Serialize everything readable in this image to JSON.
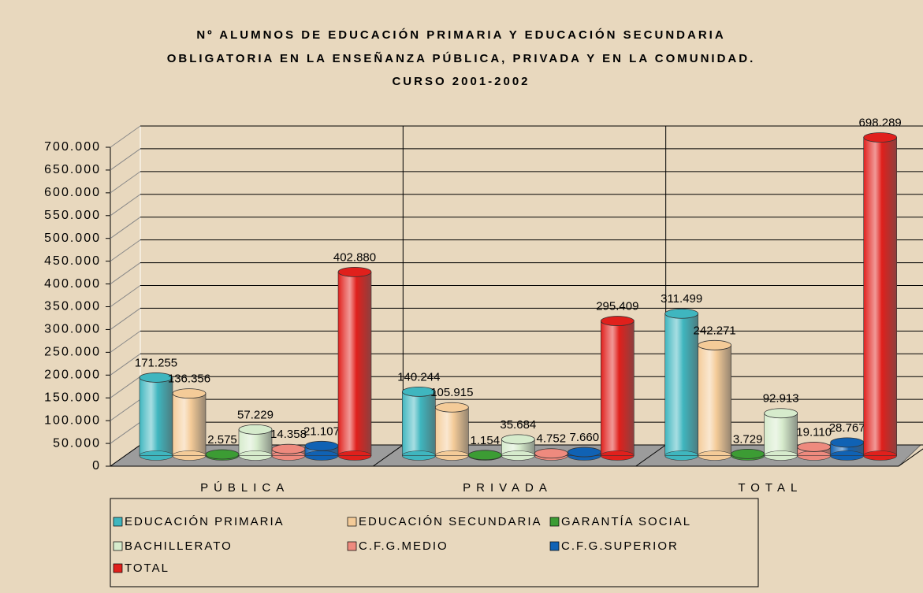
{
  "chart_data": {
    "type": "bar3d",
    "title": [
      "Nº ALUMNOS DE EDUCACIÓN PRIMARIA Y EDUCACIÓN SECUNDARIA",
      "OBLIGATORIA EN LA ENSEÑANZA PÚBLICA, PRIVADA Y EN LA COMUNIDAD.",
      "CURSO 2001-2002"
    ],
    "categories": [
      "PÚBLICA",
      "PRIVADA",
      "TOTAL"
    ],
    "series": [
      {
        "name": "EDUCACIÓN PRIMARIA",
        "color": "#3fb6bf",
        "values": [
          171255,
          140244,
          311499
        ],
        "value_labels": [
          "171.255",
          "140.244",
          "311.499"
        ]
      },
      {
        "name": "EDUCACIÓN SECUNDARIA",
        "color": "#f4cb98",
        "values": [
          136356,
          105915,
          242271
        ],
        "value_labels": [
          "136.356",
          "105.915",
          "242.271"
        ]
      },
      {
        "name": "GARANTÍA SOCIAL",
        "color": "#3c9c34",
        "values": [
          2575,
          1154,
          3729
        ],
        "value_labels": [
          "2.575",
          "1.154",
          "3.729"
        ]
      },
      {
        "name": "BACHILLERATO",
        "color": "#d6ebcc",
        "values": [
          57229,
          35684,
          92913
        ],
        "value_labels": [
          "57.229",
          "35.684",
          "92.913"
        ]
      },
      {
        "name": "C.F.G.MEDIO",
        "color": "#ee8a7e",
        "values": [
          14358,
          4752,
          19110
        ],
        "value_labels": [
          "14.358",
          "4.752",
          "19.110"
        ]
      },
      {
        "name": "C.F.G.SUPERIOR",
        "color": "#1062b4",
        "values": [
          21107,
          7660,
          28767
        ],
        "value_labels": [
          "21.107",
          "7.660",
          "28.767"
        ]
      },
      {
        "name": "TOTAL",
        "color": "#e0201c",
        "values": [
          402880,
          295409,
          698289
        ],
        "value_labels": [
          "402.880",
          "295.409",
          "698.289"
        ]
      }
    ],
    "ylim": [
      0,
      700000
    ],
    "yticks": [
      {
        "value": 0,
        "label": "0"
      },
      {
        "value": 50000,
        "label": "50.000"
      },
      {
        "value": 100000,
        "label": "100.000"
      },
      {
        "value": 150000,
        "label": "150.000"
      },
      {
        "value": 200000,
        "label": "200.000"
      },
      {
        "value": 250000,
        "label": "250.000"
      },
      {
        "value": 300000,
        "label": "300.000"
      },
      {
        "value": 350000,
        "label": "350.000"
      },
      {
        "value": 400000,
        "label": "400.000"
      },
      {
        "value": 450000,
        "label": "450.000"
      },
      {
        "value": 500000,
        "label": "500.000"
      },
      {
        "value": 550000,
        "label": "550.000"
      },
      {
        "value": 600000,
        "label": "600.000"
      },
      {
        "value": 650000,
        "label": "650.000"
      },
      {
        "value": 700000,
        "label": "700.000"
      }
    ],
    "grid": true,
    "legend": "bottom"
  }
}
